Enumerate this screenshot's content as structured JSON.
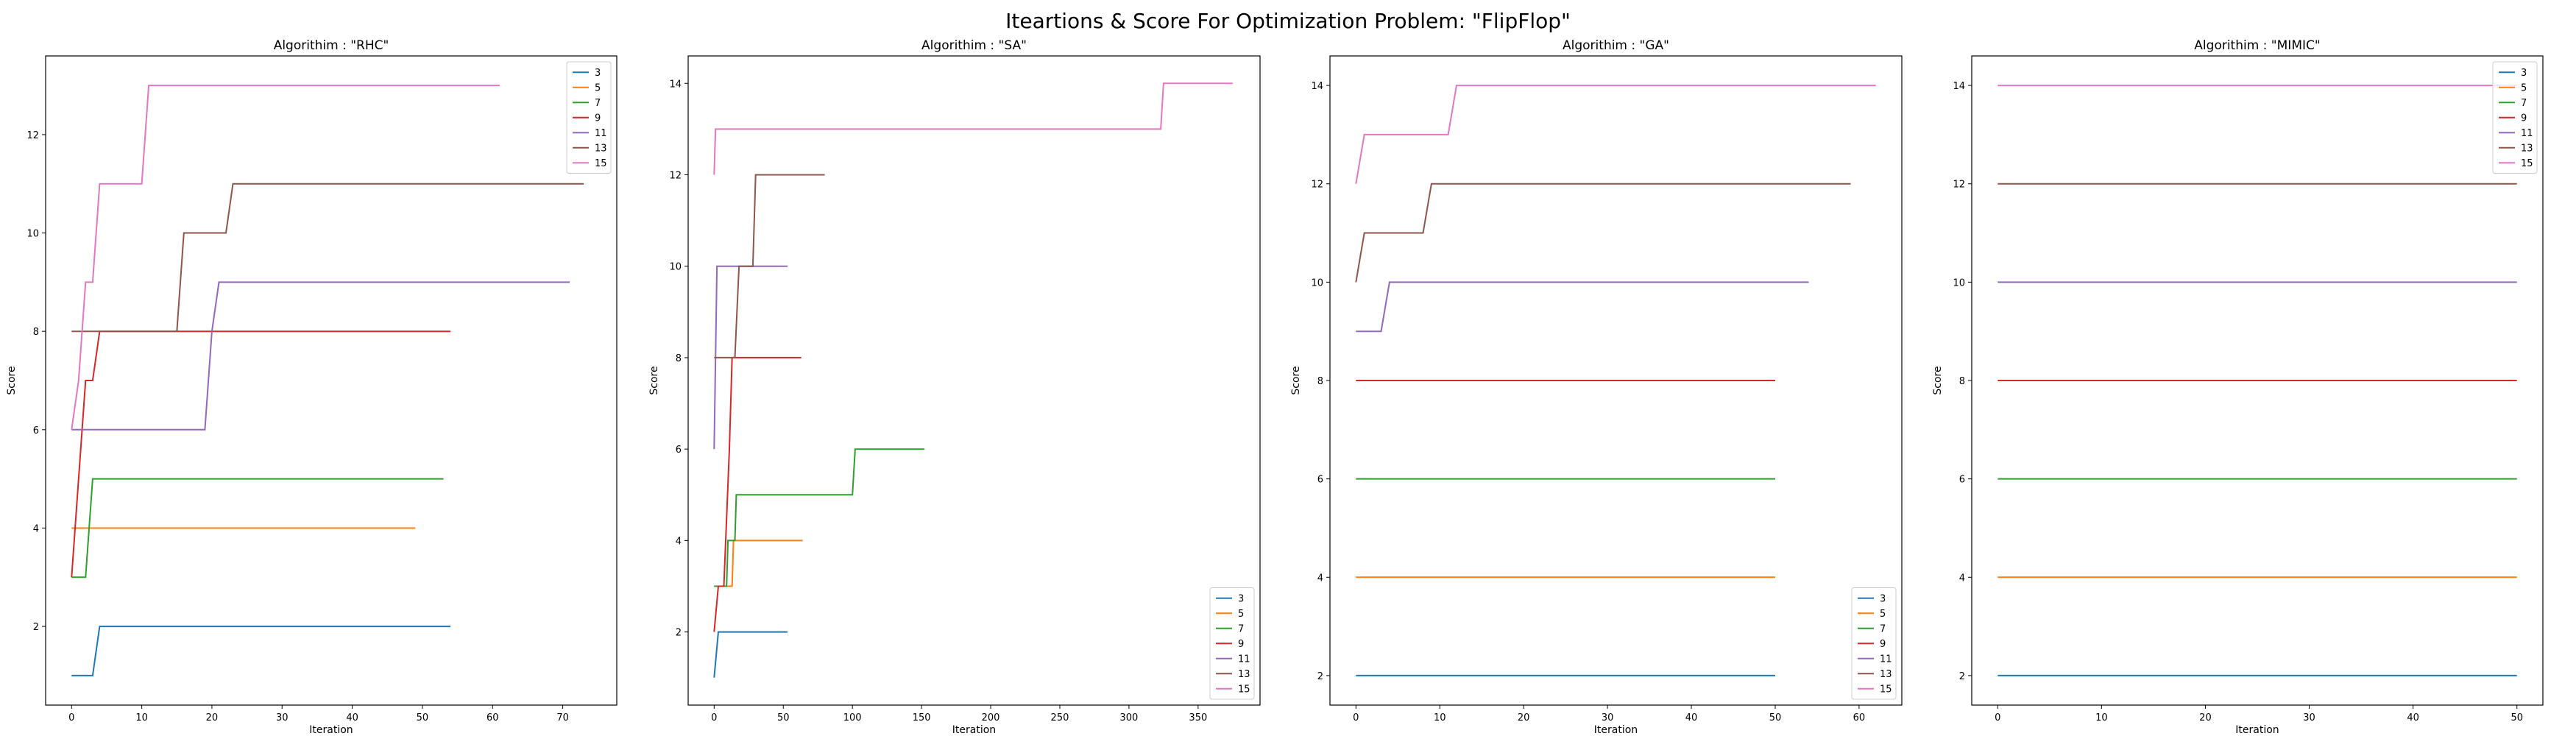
{
  "figure": {
    "title": "Iteartions & Score For Optimization Problem: \"FlipFlop\""
  },
  "chart_data": [
    {
      "type": "line",
      "title": "Algorithim : \"RHC\"",
      "xlabel": "Iteration",
      "ylabel": "Score",
      "xlim": [
        -3.7,
        77.7
      ],
      "ylim": [
        0.4,
        13.6
      ],
      "xticks": [
        0,
        10,
        20,
        30,
        40,
        50,
        60,
        70
      ],
      "yticks": [
        2,
        4,
        6,
        8,
        10,
        12
      ],
      "legend": "top-right",
      "series": [
        {
          "name": "3",
          "color": "#1f77b4",
          "x": [
            0,
            3,
            4,
            54
          ],
          "y": [
            1,
            1,
            2,
            2
          ]
        },
        {
          "name": "5",
          "color": "#ff7f0e",
          "x": [
            0,
            49
          ],
          "y": [
            4,
            4
          ]
        },
        {
          "name": "7",
          "color": "#2ca02c",
          "x": [
            0,
            2,
            3,
            53
          ],
          "y": [
            3,
            3,
            5,
            5
          ]
        },
        {
          "name": "9",
          "color": "#d62728",
          "x": [
            0,
            2,
            3,
            4,
            54
          ],
          "y": [
            3,
            7,
            7,
            8,
            8
          ]
        },
        {
          "name": "11",
          "color": "#9467bd",
          "x": [
            0,
            19,
            20,
            21,
            71
          ],
          "y": [
            6,
            6,
            8,
            9,
            9
          ]
        },
        {
          "name": "13",
          "color": "#8c564b",
          "x": [
            0,
            15,
            16,
            22,
            23,
            73
          ],
          "y": [
            8,
            8,
            10,
            10,
            11,
            11
          ]
        },
        {
          "name": "15",
          "color": "#e377c2",
          "x": [
            0,
            1,
            2,
            3,
            4,
            10,
            11,
            61
          ],
          "y": [
            6,
            7,
            9,
            9,
            11,
            11,
            13,
            13
          ]
        }
      ]
    },
    {
      "type": "line",
      "title": "Algorithim : \"SA\"",
      "xlabel": "Iteration",
      "ylabel": "Score",
      "xlim": [
        -18.8,
        394.8
      ],
      "ylim": [
        0.4,
        14.6
      ],
      "xticks": [
        0,
        50,
        100,
        150,
        200,
        250,
        300,
        350
      ],
      "yticks": [
        2,
        4,
        6,
        8,
        10,
        12,
        14
      ],
      "legend": "bottom-right",
      "series": [
        {
          "name": "3",
          "color": "#1f77b4",
          "x": [
            0,
            3,
            53
          ],
          "y": [
            1,
            2,
            2
          ]
        },
        {
          "name": "5",
          "color": "#ff7f0e",
          "x": [
            0,
            13,
            14,
            64
          ],
          "y": [
            3,
            3,
            4,
            4
          ]
        },
        {
          "name": "7",
          "color": "#2ca02c",
          "x": [
            0,
            9,
            10,
            15,
            16,
            100,
            102,
            152
          ],
          "y": [
            3,
            3,
            4,
            4,
            5,
            5,
            6,
            6
          ]
        },
        {
          "name": "9",
          "color": "#d62728",
          "x": [
            0,
            3,
            7,
            11,
            13,
            63
          ],
          "y": [
            2,
            3,
            3,
            6,
            8,
            8
          ]
        },
        {
          "name": "11",
          "color": "#9467bd",
          "x": [
            0,
            1,
            2,
            3,
            53
          ],
          "y": [
            6,
            8,
            10,
            10,
            10
          ]
        },
        {
          "name": "13",
          "color": "#8c564b",
          "x": [
            0,
            15,
            18,
            28,
            30,
            80
          ],
          "y": [
            8,
            8,
            10,
            10,
            12,
            12
          ]
        },
        {
          "name": "15",
          "color": "#e377c2",
          "x": [
            0,
            1,
            323,
            325,
            375
          ],
          "y": [
            12,
            13,
            13,
            14,
            14
          ]
        }
      ]
    },
    {
      "type": "line",
      "title": "Algorithim : \"GA\"",
      "xlabel": "Iteration",
      "ylabel": "Score",
      "xlim": [
        -3.1,
        65.1
      ],
      "ylim": [
        1.4,
        14.6
      ],
      "xticks": [
        0,
        10,
        20,
        30,
        40,
        50,
        60
      ],
      "yticks": [
        2,
        4,
        6,
        8,
        10,
        12,
        14
      ],
      "legend": "bottom-right",
      "series": [
        {
          "name": "3",
          "color": "#1f77b4",
          "x": [
            0,
            50
          ],
          "y": [
            2,
            2
          ]
        },
        {
          "name": "5",
          "color": "#ff7f0e",
          "x": [
            0,
            50
          ],
          "y": [
            4,
            4
          ]
        },
        {
          "name": "7",
          "color": "#2ca02c",
          "x": [
            0,
            50
          ],
          "y": [
            6,
            6
          ]
        },
        {
          "name": "9",
          "color": "#d62728",
          "x": [
            0,
            50
          ],
          "y": [
            8,
            8
          ]
        },
        {
          "name": "11",
          "color": "#9467bd",
          "x": [
            0,
            3,
            4,
            54
          ],
          "y": [
            9,
            9,
            10,
            10
          ]
        },
        {
          "name": "13",
          "color": "#8c564b",
          "x": [
            0,
            1,
            8,
            9,
            59
          ],
          "y": [
            10,
            11,
            11,
            12,
            12
          ]
        },
        {
          "name": "15",
          "color": "#e377c2",
          "x": [
            0,
            1,
            11,
            12,
            62
          ],
          "y": [
            12,
            13,
            13,
            14,
            14
          ]
        }
      ]
    },
    {
      "type": "line",
      "title": "Algorithim : \"MIMIC\"",
      "xlabel": "Iteration",
      "ylabel": "Score",
      "xlim": [
        -2.5,
        52.5
      ],
      "ylim": [
        1.4,
        14.6
      ],
      "xticks": [
        0,
        10,
        20,
        30,
        40,
        50
      ],
      "yticks": [
        2,
        4,
        6,
        8,
        10,
        12,
        14
      ],
      "legend": "top-right",
      "series": [
        {
          "name": "3",
          "color": "#1f77b4",
          "x": [
            0,
            50
          ],
          "y": [
            2,
            2
          ]
        },
        {
          "name": "5",
          "color": "#ff7f0e",
          "x": [
            0,
            50
          ],
          "y": [
            4,
            4
          ]
        },
        {
          "name": "7",
          "color": "#2ca02c",
          "x": [
            0,
            50
          ],
          "y": [
            6,
            6
          ]
        },
        {
          "name": "9",
          "color": "#d62728",
          "x": [
            0,
            50
          ],
          "y": [
            8,
            8
          ]
        },
        {
          "name": "11",
          "color": "#9467bd",
          "x": [
            0,
            50
          ],
          "y": [
            10,
            10
          ]
        },
        {
          "name": "13",
          "color": "#8c564b",
          "x": [
            0,
            50
          ],
          "y": [
            12,
            12
          ]
        },
        {
          "name": "15",
          "color": "#e377c2",
          "x": [
            0,
            50
          ],
          "y": [
            14,
            14
          ]
        }
      ]
    }
  ]
}
